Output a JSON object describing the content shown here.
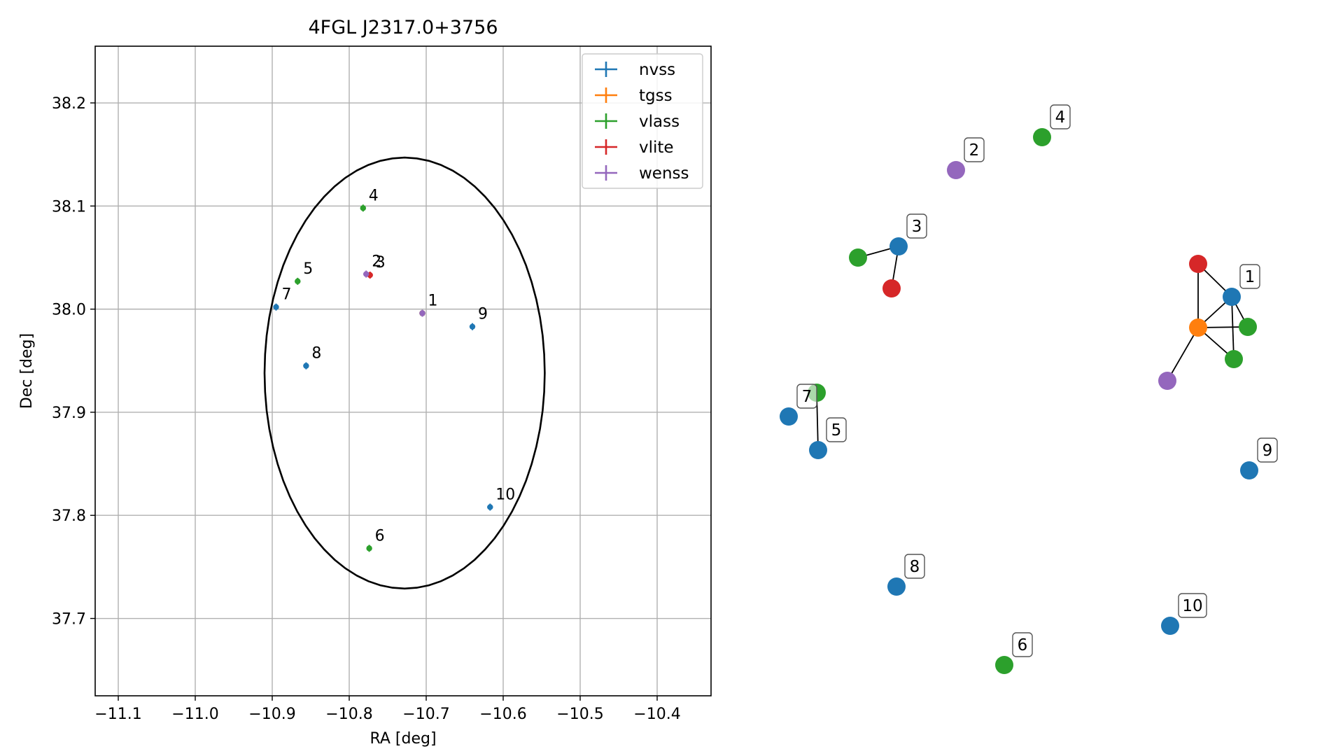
{
  "chart_data": [
    {
      "type": "scatter",
      "title": "4FGL J2317.0+3756",
      "xlabel": "RA [deg]",
      "ylabel": "Dec [deg]",
      "xlim": [
        -11.13,
        -10.33
      ],
      "ylim": [
        37.625,
        38.255
      ],
      "xticks": [
        -11.1,
        -11.0,
        -10.9,
        -10.8,
        -10.7,
        -10.6,
        -10.5,
        -10.4
      ],
      "xtick_labels": [
        "−11.1",
        "−11.0",
        "−10.9",
        "−10.8",
        "−10.7",
        "−10.6",
        "−10.5",
        "−10.4"
      ],
      "yticks": [
        37.7,
        37.8,
        37.9,
        38.0,
        38.1,
        38.2
      ],
      "ytick_labels": [
        "37.7",
        "37.8",
        "37.9",
        "38.0",
        "38.1",
        "38.2"
      ],
      "grid": true,
      "legend_position": "top-right",
      "ellipse": {
        "center": [
          -10.728,
          37.938
        ],
        "semi_axis_ra": 0.182,
        "semi_axis_dec": 0.209,
        "color": "#000000"
      },
      "series": [
        {
          "name": "nvss",
          "color": "#1f77b4",
          "points": [
            {
              "x": -10.705,
              "y": 37.996,
              "label": "1"
            },
            {
              "x": -10.895,
              "y": 38.002,
              "label": "7"
            },
            {
              "x": -10.856,
              "y": 37.945,
              "label": "8"
            },
            {
              "x": -10.64,
              "y": 37.983,
              "label": "9"
            },
            {
              "x": -10.617,
              "y": 37.808,
              "label": "10"
            }
          ]
        },
        {
          "name": "tgss",
          "color": "#ff7f0e",
          "points": [
            {
              "x": -10.705,
              "y": 37.996,
              "label": ""
            }
          ]
        },
        {
          "name": "vlass",
          "color": "#2ca02c",
          "points": [
            {
              "x": -10.782,
              "y": 38.098,
              "label": "4"
            },
            {
              "x": -10.867,
              "y": 38.027,
              "label": "5"
            },
            {
              "x": -10.774,
              "y": 37.768,
              "label": "6"
            },
            {
              "x": -10.705,
              "y": 37.996,
              "label": ""
            }
          ]
        },
        {
          "name": "vlite",
          "color": "#d62728",
          "points": [
            {
              "x": -10.773,
              "y": 38.033,
              "label": "3"
            },
            {
              "x": -10.705,
              "y": 37.996,
              "label": ""
            }
          ]
        },
        {
          "name": "wenss",
          "color": "#9467bd",
          "points": [
            {
              "x": -10.778,
              "y": 38.034,
              "label": "2"
            },
            {
              "x": -10.705,
              "y": 37.996,
              "label": ""
            }
          ]
        }
      ]
    },
    {
      "type": "network",
      "colors": {
        "nvss": "#1f77b4",
        "tgss": "#ff7f0e",
        "vlass": "#2ca02c",
        "vlite": "#d62728",
        "wenss": "#9467bd"
      },
      "nodes": [
        {
          "id": "n1",
          "catalog": "nvss",
          "label": "1"
        },
        {
          "id": "v1a",
          "catalog": "vlite",
          "label": ""
        },
        {
          "id": "t1",
          "catalog": "tgss",
          "label": ""
        },
        {
          "id": "g1a",
          "catalog": "vlass",
          "label": ""
        },
        {
          "id": "g1b",
          "catalog": "vlass",
          "label": ""
        },
        {
          "id": "w1",
          "catalog": "wenss",
          "label": ""
        },
        {
          "id": "w2",
          "catalog": "wenss",
          "label": "2"
        },
        {
          "id": "g4",
          "catalog": "vlass",
          "label": "4"
        },
        {
          "id": "n3",
          "catalog": "nvss",
          "label": "3"
        },
        {
          "id": "g3",
          "catalog": "vlass",
          "label": ""
        },
        {
          "id": "v3",
          "catalog": "vlite",
          "label": ""
        },
        {
          "id": "g5",
          "catalog": "vlass",
          "label": ""
        },
        {
          "id": "n5",
          "catalog": "nvss",
          "label": "5"
        },
        {
          "id": "n7",
          "catalog": "nvss",
          "label": "7"
        },
        {
          "id": "n9",
          "catalog": "nvss",
          "label": "9"
        },
        {
          "id": "n8",
          "catalog": "nvss",
          "label": "8"
        },
        {
          "id": "n10",
          "catalog": "nvss",
          "label": "10"
        },
        {
          "id": "g6",
          "catalog": "vlass",
          "label": "6"
        }
      ],
      "edges": [
        [
          "t1",
          "v1a"
        ],
        [
          "t1",
          "n1"
        ],
        [
          "t1",
          "g1a"
        ],
        [
          "t1",
          "g1b"
        ],
        [
          "t1",
          "w1"
        ],
        [
          "v1a",
          "n1"
        ],
        [
          "n1",
          "g1a"
        ],
        [
          "n1",
          "g1b"
        ],
        [
          "g3",
          "n3"
        ],
        [
          "n3",
          "v3"
        ],
        [
          "g5",
          "n5"
        ]
      ]
    }
  ]
}
